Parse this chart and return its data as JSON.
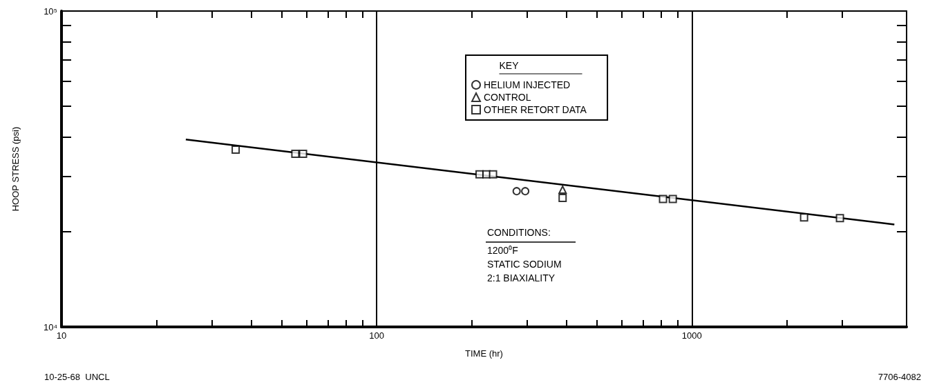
{
  "chart_data": {
    "type": "scatter",
    "xlabel": "TIME (hr)",
    "ylabel": "HOOP STRESS (psi)",
    "legend_title": "KEY",
    "log": "xy",
    "grid": "x",
    "legend": "top",
    "xlim": [
      10,
      4800
    ],
    "ylim": [
      10000,
      100000
    ],
    "xticks": [
      {
        "value": 10,
        "label": "10"
      },
      {
        "value": 20,
        "label": null
      },
      {
        "value": 30,
        "label": null
      },
      {
        "value": 40,
        "label": null
      },
      {
        "value": 50,
        "label": null
      },
      {
        "value": 60,
        "label": null
      },
      {
        "value": 70,
        "label": null
      },
      {
        "value": 80,
        "label": null
      },
      {
        "value": 90,
        "label": null
      },
      {
        "value": 100,
        "label": "100"
      },
      {
        "value": 200,
        "label": null
      },
      {
        "value": 300,
        "label": null
      },
      {
        "value": 400,
        "label": null
      },
      {
        "value": 500,
        "label": null
      },
      {
        "value": 600,
        "label": null
      },
      {
        "value": 700,
        "label": null
      },
      {
        "value": 800,
        "label": null
      },
      {
        "value": 900,
        "label": null
      },
      {
        "value": 1000,
        "label": "1000"
      },
      {
        "value": 2000,
        "label": null
      },
      {
        "value": 3000,
        "label": null
      }
    ],
    "yticks": [
      {
        "value": 10000,
        "label": "10⁴"
      },
      {
        "value": 20000,
        "label": null
      },
      {
        "value": 30000,
        "label": null
      },
      {
        "value": 40000,
        "label": null
      },
      {
        "value": 50000,
        "label": null
      },
      {
        "value": 60000,
        "label": null
      },
      {
        "value": 70000,
        "label": null
      },
      {
        "value": 80000,
        "label": null
      },
      {
        "value": 90000,
        "label": null
      },
      {
        "value": 100000,
        "label": "10⁵"
      }
    ],
    "series": [
      {
        "name": "HELIUM INJECTED",
        "marker": "circle",
        "color": "#000000",
        "x": [
          278,
          296
        ],
        "values": [
          26900,
          26900
        ]
      },
      {
        "name": "CONTROL",
        "marker": "triangle",
        "color": "#000000",
        "x": [
          389
        ],
        "values": [
          27200
        ]
      },
      {
        "name": "OTHER RETORT DATA",
        "marker": "square",
        "color": "#000000",
        "x": [
          35.7,
          55.2,
          58.4,
          212,
          223,
          234,
          389,
          810,
          870,
          2270,
          2950
        ],
        "values": [
          36400,
          35300,
          35300,
          30400,
          30400,
          30400,
          25600,
          25400,
          25400,
          22200,
          22100
        ]
      },
      {
        "type": "line",
        "marker": "none",
        "line_style": "solid",
        "color": "#000000",
        "x": [
          24.8,
          4390
        ],
        "values": [
          39200,
          21100
        ]
      }
    ],
    "annotations": [
      "CONDITIONS:",
      "1200⁰F",
      "STATIC SODIUM",
      "2:1 BIAXIALITY",
      "10-25-68  UNCL",
      "7706-4082"
    ]
  }
}
